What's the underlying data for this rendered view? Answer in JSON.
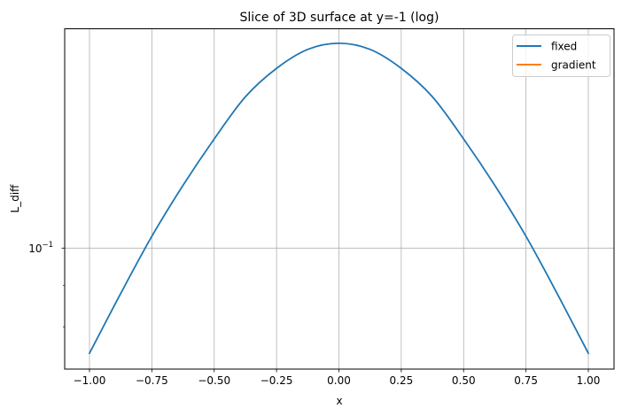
{
  "chart_data": {
    "type": "line",
    "title": "Slice of 3D surface at y=-1 (log)",
    "xlabel": "x",
    "ylabel": "L_diff",
    "yscale": "log",
    "xlim": [
      -1.1,
      1.1
    ],
    "ylim": [
      0.0728,
      0.2
    ],
    "grid": true,
    "legend_position": "upper right",
    "x_ticks": [
      -1.0,
      -0.75,
      -0.5,
      -0.25,
      0.0,
      0.25,
      0.5,
      0.75,
      1.0
    ],
    "x_tick_labels": [
      "−1.00",
      "−0.75",
      "−0.50",
      "−0.25",
      "0.00",
      "0.25",
      "0.50",
      "0.75",
      "1.00"
    ],
    "y_major_ticks": [
      0.1
    ],
    "y_major_tick_labels": [
      "10⁻¹"
    ],
    "y_minor_ticks": [
      0.09,
      0.08
    ],
    "x": [
      -1.0,
      -0.875,
      -0.75,
      -0.625,
      -0.5,
      -0.375,
      -0.25,
      -0.125,
      0.0,
      0.125,
      0.25,
      0.375,
      0.5,
      0.625,
      0.75,
      0.875,
      1.0
    ],
    "series": [
      {
        "name": "fixed",
        "color": "#1f77b4",
        "values": [
          0.0742,
          0.0879,
          0.1034,
          0.1195,
          0.1363,
          0.1536,
          0.1665,
          0.1757,
          0.1788,
          0.1757,
          0.1665,
          0.1536,
          0.1363,
          0.1195,
          0.1034,
          0.0879,
          0.0742
        ]
      },
      {
        "name": "gradient",
        "color": "#ff7f0e",
        "values": []
      }
    ]
  },
  "labels": {
    "title": "Slice of 3D surface at y=-1 (log)",
    "xlabel": "x",
    "ylabel": "L_diff",
    "y_tick_base": "10",
    "y_tick_exp": "−1",
    "legend": [
      "fixed",
      "gradient"
    ]
  }
}
